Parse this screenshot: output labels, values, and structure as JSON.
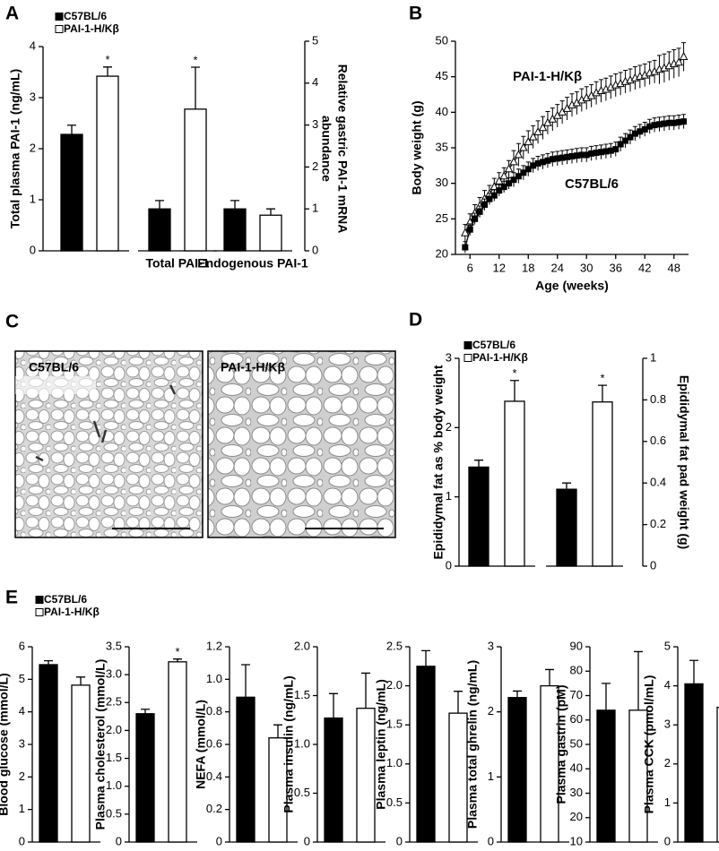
{
  "chart_data": [
    {
      "type": "bar",
      "panel": "A",
      "categories": [
        null,
        "Total PAI-1",
        "Endogenous PAI-1"
      ],
      "category_axis": [
        "y",
        "y2",
        "y2"
      ],
      "ylabel": "Total plasma PAI-1 (ng/mL)",
      "y2label": [
        "Relative gastric PAI-1 mRNA",
        "abundance"
      ],
      "ylim": [
        0,
        4
      ],
      "yticks": [
        0,
        1,
        2,
        3,
        4
      ],
      "y2lim": [
        0,
        5
      ],
      "y2ticks": [
        0,
        1,
        2,
        3,
        4,
        5
      ],
      "legend": "upper left",
      "series": [
        {
          "name": "C57BL/6",
          "color": "#000000",
          "values": [
            2.28,
            1.0,
            1.0
          ],
          "errors": [
            0.18,
            0.2,
            0.2
          ]
        },
        {
          "name": "PAI-1-H/Kβ",
          "color": "#ffffff",
          "values": [
            3.42,
            3.38,
            0.85
          ],
          "errors": [
            0.18,
            1.0,
            0.15
          ],
          "significance": [
            "*",
            "*",
            null
          ]
        }
      ]
    },
    {
      "type": "line",
      "panel": "B",
      "xlabel": "Age (weeks)",
      "ylabel": "Body weight (g)",
      "x": [
        5,
        6,
        7,
        8,
        9,
        10,
        11,
        12,
        13,
        14,
        15,
        16,
        17,
        18,
        19,
        20,
        21,
        22,
        23,
        24,
        25,
        26,
        27,
        28,
        29,
        30,
        31,
        32,
        33,
        34,
        35,
        36,
        37,
        38,
        39,
        40,
        41,
        42,
        43,
        44,
        45,
        46,
        47,
        48,
        49,
        50
      ],
      "xlim": [
        3,
        51
      ],
      "xticks": [
        6,
        12,
        18,
        24,
        30,
        36,
        42,
        48
      ],
      "ylim": [
        20,
        50
      ],
      "yticks": [
        20,
        25,
        30,
        35,
        40,
        45,
        50
      ],
      "series": [
        {
          "name": "PAI-1-H/Kβ",
          "color": "#000000",
          "marker": "triangle-open",
          "values": [
            23,
            24.5,
            25.8,
            26.8,
            27.8,
            28.5,
            29.5,
            30.3,
            31,
            32,
            33,
            34,
            35,
            35.8,
            36.5,
            37.2,
            37.8,
            38.5,
            39,
            39.5,
            40,
            40.5,
            41,
            41.3,
            41.7,
            42,
            42.3,
            42.7,
            43,
            43.2,
            43.5,
            43.8,
            44,
            44.3,
            44.5,
            44.8,
            45,
            45.2,
            45.5,
            45.7,
            46,
            46.2,
            46.5,
            46.8,
            47,
            47.8
          ],
          "errors": [
            1.2,
            1.2,
            1.2,
            1.2,
            1.2,
            1.2,
            1.2,
            1.2,
            1.2,
            1.2,
            1.6,
            1.6,
            1.6,
            1.6,
            1.6,
            1.6,
            1.6,
            1.6,
            1.6,
            1.6,
            1.6,
            1.6,
            1.6,
            1.6,
            1.6,
            1.6,
            1.6,
            1.6,
            1.6,
            1.6,
            1.6,
            1.6,
            1.6,
            1.6,
            1.6,
            1.6,
            1.6,
            1.6,
            1.6,
            1.6,
            2.0,
            2.0,
            2.0,
            2.0,
            2.0,
            2.0
          ]
        },
        {
          "name": "C57BL/6",
          "color": "#000000",
          "marker": "square",
          "values": [
            21,
            23.5,
            25,
            26,
            27,
            27.8,
            28.3,
            29,
            29.5,
            30,
            30.5,
            31,
            31.5,
            32,
            32.5,
            32.8,
            33,
            33.2,
            33.4,
            33.5,
            33.6,
            33.7,
            33.8,
            33.9,
            34,
            34,
            34.2,
            34.3,
            34.4,
            34.5,
            34.6,
            34.8,
            35.5,
            36,
            36.5,
            37,
            37.3,
            37.6,
            38,
            38.2,
            38.3,
            38.4,
            38.5,
            38.5,
            38.6,
            38.7
          ],
          "errors": [
            0.8,
            0.8,
            0.8,
            0.8,
            0.8,
            0.8,
            0.8,
            0.8,
            0.8,
            0.8,
            1.0,
            1.0,
            1.0,
            1.0,
            1.0,
            1.0,
            1.0,
            1.0,
            1.0,
            1.0,
            1.0,
            1.0,
            1.0,
            1.0,
            1.0,
            1.0,
            1.0,
            1.0,
            1.0,
            1.0,
            1.0,
            1.0,
            1.0,
            1.0,
            1.0,
            1.0,
            1.0,
            1.0,
            1.0,
            1.0,
            1.0,
            1.0,
            1.0,
            1.0,
            1.0,
            1.0
          ]
        }
      ]
    },
    {
      "type": "bar",
      "panel": "D",
      "categories": [
        null,
        null
      ],
      "category_axis": [
        "y",
        "y2"
      ],
      "ylabel": "Epididymal fat as % body weight",
      "y2label": "Epididymal fat pad weight (g)",
      "ylim": [
        0,
        3
      ],
      "yticks": [
        0,
        1,
        2,
        3
      ],
      "y2lim": [
        0,
        1
      ],
      "y2ticks": [
        0,
        0.2,
        0.4,
        0.6,
        0.8,
        1
      ],
      "legend": "upper left",
      "series": [
        {
          "name": "C57BL/6",
          "color": "#000000",
          "values": [
            1.43,
            0.37
          ],
          "errors": [
            0.1,
            0.03
          ]
        },
        {
          "name": "PAI-1-H/Kβ",
          "color": "#ffffff",
          "values": [
            2.38,
            0.79
          ],
          "errors": [
            0.3,
            0.08
          ],
          "significance": [
            "*",
            "*"
          ]
        }
      ]
    },
    {
      "type": "bar",
      "panel": "E",
      "categories": [
        null
      ],
      "ylabel": "Blood glucose (mmol/L)",
      "ylim": [
        0,
        6
      ],
      "yticks": [
        0,
        1,
        2,
        3,
        4,
        5,
        6
      ],
      "legend": "upper left",
      "series": [
        {
          "name": "C57BL/6",
          "color": "#000000",
          "values": [
            5.45
          ],
          "errors": [
            0.12
          ]
        },
        {
          "name": "PAI-1-H/Kβ",
          "color": "#ffffff",
          "values": [
            4.82
          ],
          "errors": [
            0.25
          ]
        }
      ]
    },
    {
      "type": "bar",
      "categories": [
        null
      ],
      "ylabel": "Plasma cholesterol (mmol/L)",
      "ylim": [
        0,
        3.5
      ],
      "yticks": [
        0,
        0.5,
        {
          "value": 1,
          "label": "1.0"
        },
        1.5,
        {
          "value": 2,
          "label": "2.0"
        },
        2.5,
        {
          "value": 3,
          "label": "3.0"
        },
        3.5
      ],
      "series": [
        {
          "color": "#000000",
          "values": [
            2.3
          ],
          "errors": [
            0.08
          ]
        },
        {
          "color": "#ffffff",
          "values": [
            3.23
          ],
          "errors": [
            0.05
          ],
          "significance": [
            "*"
          ]
        }
      ]
    },
    {
      "type": "bar",
      "categories": [
        null
      ],
      "ylabel": "NEFA (mmol/L)",
      "ylim": [
        0,
        1.2
      ],
      "yticks": [
        0,
        0.2,
        0.4,
        0.6,
        0.8,
        {
          "value": 1,
          "label": "1.0"
        },
        1.2
      ],
      "series": [
        {
          "color": "#000000",
          "values": [
            0.89
          ],
          "errors": [
            0.2
          ]
        },
        {
          "color": "#ffffff",
          "values": [
            0.64
          ],
          "errors": [
            0.08
          ]
        }
      ]
    },
    {
      "type": "bar",
      "categories": [
        null
      ],
      "ylabel": "Plasma insulin (ng/mL)",
      "ylim": [
        0,
        2
      ],
      "yticks": [
        0,
        0.5,
        {
          "value": 1,
          "label": "1.0"
        },
        1.5,
        {
          "value": 2,
          "label": "2.0"
        }
      ],
      "series": [
        {
          "color": "#000000",
          "values": [
            1.27
          ],
          "errors": [
            0.25
          ]
        },
        {
          "color": "#ffffff",
          "values": [
            1.37
          ],
          "errors": [
            0.36
          ]
        }
      ]
    },
    {
      "type": "bar",
      "categories": [
        null
      ],
      "ylabel": "Plasma leptin (ng/mL)",
      "ylim": [
        0,
        2.5
      ],
      "yticks": [
        0,
        0.5,
        {
          "value": 1,
          "label": "1.0"
        },
        1.5,
        {
          "value": 2,
          "label": "2.0"
        },
        2.5
      ],
      "series": [
        {
          "color": "#000000",
          "values": [
            2.25
          ],
          "errors": [
            0.2
          ]
        },
        {
          "color": "#ffffff",
          "values": [
            1.65
          ],
          "errors": [
            0.28
          ]
        }
      ]
    },
    {
      "type": "bar",
      "categories": [
        null
      ],
      "ylabel": "Plasma total ghrelin (ng/mL)",
      "ylim": [
        0,
        3
      ],
      "yticks": [
        0,
        1,
        2,
        3
      ],
      "series": [
        {
          "color": "#000000",
          "values": [
            2.22
          ],
          "errors": [
            0.1
          ]
        },
        {
          "color": "#ffffff",
          "values": [
            2.4
          ],
          "errors": [
            0.25
          ]
        }
      ]
    },
    {
      "type": "bar",
      "categories": [
        null
      ],
      "ylabel": "Plasma gastrin (pM)",
      "ylim": [
        10,
        90
      ],
      "yticks": [
        10,
        20,
        30,
        40,
        50,
        60,
        70,
        80,
        90
      ],
      "series": [
        {
          "color": "#000000",
          "values": [
            64
          ],
          "errors": [
            11
          ]
        },
        {
          "color": "#ffffff",
          "values": [
            64
          ],
          "errors": [
            24
          ]
        }
      ]
    },
    {
      "type": "bar",
      "categories": [
        null
      ],
      "ylabel": "Plasma CCK (pmol/mL)",
      "ylim": [
        0,
        5
      ],
      "yticks": [
        0,
        1,
        2,
        3,
        4,
        5
      ],
      "series": [
        {
          "color": "#000000",
          "values": [
            4.05
          ],
          "errors": [
            0.6
          ]
        },
        {
          "color": "#ffffff",
          "values": [
            3.45
          ],
          "errors": [
            0.5
          ]
        }
      ]
    }
  ],
  "panel_c": {
    "panel": "C",
    "images": [
      "C57BL/6",
      "PAI-1-H/Kβ"
    ]
  }
}
